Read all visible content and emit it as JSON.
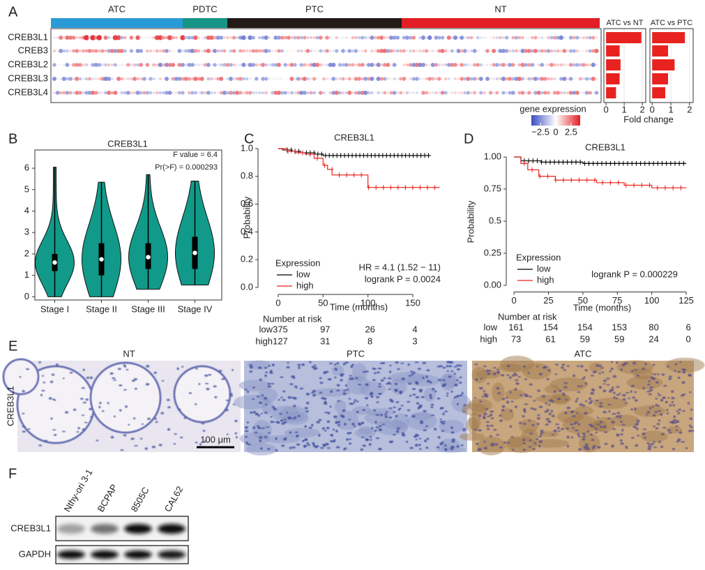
{
  "panel_labels": [
    "A",
    "B",
    "C",
    "D",
    "E",
    "F"
  ],
  "panel_a": {
    "groups": [
      "ATC",
      "PDTC",
      "PTC",
      "NT"
    ],
    "group_colors": [
      "#2a9ad7",
      "#169486",
      "#231a18",
      "#e31e24"
    ],
    "genes": [
      "CREB3L1",
      "CREB3",
      "CREB3L2",
      "CREB3L3",
      "CREB3L4"
    ],
    "gene_colors": [
      "#e0245e",
      "#222222",
      "#222222",
      "#222222",
      "#222222"
    ],
    "fold_change": {
      "type": "bar",
      "xlabel": "Fold change",
      "color": "#e8231f",
      "xlim": [
        -0.12,
        2.19
      ],
      "xticks": [
        0,
        1,
        2
      ],
      "series": [
        {
          "name": "ATC vs NT",
          "values": [
            1.95,
            0.75,
            0.8,
            0.75,
            0.55
          ]
        },
        {
          "name": "ATC vs PTC",
          "values": [
            1.75,
            0.85,
            1.2,
            0.85,
            0.7
          ]
        }
      ]
    },
    "legend": {
      "title": "gene expression",
      "lim": [
        -4,
        4
      ],
      "ticks": [
        {
          "value": -2.5,
          "label": "−2.5"
        },
        0,
        2.5
      ],
      "colors": [
        "#3b4cc0",
        "#ffffff",
        "#e31e24"
      ]
    }
  },
  "panel_b": {
    "type": "violin",
    "title": "CREB3L1",
    "categories": [
      "Stage I",
      "Stage II",
      "Stage III",
      "Stage IV"
    ],
    "color": "#119a8a",
    "ylim": [
      -0.15,
      6.85
    ],
    "yticks": [
      0,
      1,
      2,
      3,
      4,
      5,
      6
    ],
    "min": [
      0,
      0,
      0.35,
      0.55
    ],
    "q1": [
      1.2,
      1.0,
      1.3,
      1.3
    ],
    "medians": [
      1.6,
      1.75,
      1.85,
      2.05
    ],
    "q3": [
      2.0,
      2.5,
      2.5,
      2.8
    ],
    "max": [
      6.05,
      5.35,
      5.7,
      5.4
    ],
    "annotations": [
      "F value = 6.4",
      "Pr(>F) = 0.000293"
    ]
  },
  "panel_c": {
    "type": "line",
    "title": "CREB3L1",
    "xlabel": "Time (months)",
    "ylabel": "Probability",
    "xlim": [
      -22.5,
      179.5
    ],
    "ylim": [
      -0.03,
      1.03
    ],
    "xticks": [
      0,
      50,
      100,
      150
    ],
    "yticks": [
      {
        "value": 0,
        "label": "0.0"
      },
      0.2,
      0.4,
      0.6,
      0.8,
      {
        "value": 1,
        "label": "1.0"
      }
    ],
    "legend_title": "Expression",
    "series": [
      {
        "name": "low",
        "color": "#000000",
        "x": [
          0,
          5,
          15,
          25,
          40,
          50,
          170
        ],
        "values": [
          1,
          0.99,
          0.98,
          0.97,
          0.96,
          0.95,
          0.95
        ]
      },
      {
        "name": "high",
        "color": "#e8231f",
        "x": [
          0,
          10,
          20,
          30,
          40,
          50,
          55,
          60,
          100,
          180
        ],
        "values": [
          1,
          0.98,
          0.97,
          0.96,
          0.93,
          0.88,
          0.85,
          0.81,
          0.72,
          0.72
        ]
      }
    ],
    "annotations": [
      "HR = 4.1 (1.52 − 11)",
      "logrank P = 0.0024"
    ],
    "risk_table": {
      "title": "Number at risk",
      "rows": [
        {
          "name": "low",
          "values": [
            375,
            97,
            26,
            4
          ]
        },
        {
          "name": "high",
          "values": [
            127,
            31,
            8,
            3
          ]
        }
      ]
    }
  },
  "panel_d": {
    "type": "line",
    "title": "CREB3L1",
    "xlabel": "Time (months)",
    "ylabel": "Probability",
    "xlim": [
      -5.6,
      128
    ],
    "ylim": [
      -0.03,
      1.03
    ],
    "xticks": [
      0,
      25,
      50,
      75,
      100,
      125
    ],
    "yticks": [
      {
        "value": 0,
        "label": "0.00"
      },
      0.25,
      0.5,
      0.75,
      {
        "value": 1,
        "label": "1.00"
      }
    ],
    "legend_title": "Expression",
    "series": [
      {
        "name": "low",
        "color": "#000000",
        "x": [
          0,
          5,
          20,
          50,
          125
        ],
        "values": [
          1,
          0.97,
          0.96,
          0.95,
          0.95
        ]
      },
      {
        "name": "high",
        "color": "#e8231f",
        "x": [
          0,
          5,
          10,
          18,
          30,
          60,
          80,
          100,
          125
        ],
        "values": [
          1,
          0.95,
          0.9,
          0.85,
          0.82,
          0.8,
          0.78,
          0.76,
          0.76
        ]
      }
    ],
    "annotations": [
      "logrank P = 0.000229"
    ],
    "risk_table": {
      "title": "Number at risk",
      "rows": [
        {
          "name": "low",
          "values": [
            161,
            154,
            154,
            153,
            80,
            6
          ]
        },
        {
          "name": "high",
          "values": [
            73,
            61,
            59,
            59,
            24,
            0
          ]
        }
      ]
    }
  },
  "panel_e": {
    "titles": [
      "NT",
      "PTC",
      "ATC"
    ],
    "row_label": "CREB3L1",
    "scale_bar": "100 μm"
  },
  "panel_f": {
    "lanes": [
      "Nthy-ori 3-1",
      "BCPAP",
      "8505C",
      "CAL62"
    ],
    "rows": [
      "CREB3L1",
      "GAPDH"
    ]
  }
}
